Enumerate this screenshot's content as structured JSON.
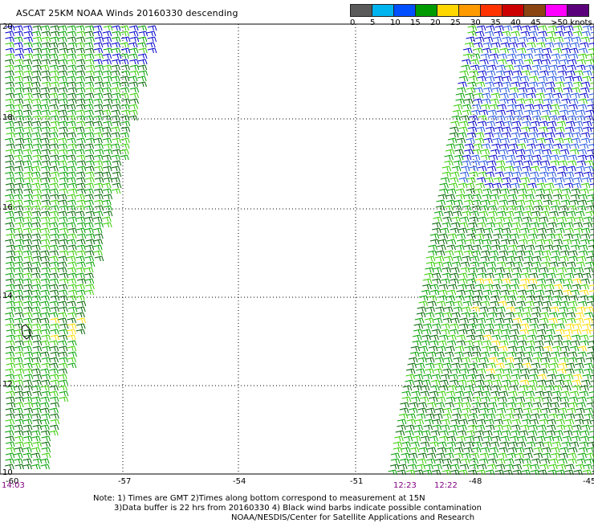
{
  "title": "ASCAT 25KM NOAA Winds 20160330 descending",
  "legend": {
    "labels": [
      "0",
      "5",
      "10",
      "15",
      "20",
      "25",
      "30",
      "35",
      "40",
      "45",
      ">50 knots"
    ],
    "colors": [
      "#5a5a5a",
      "#00b4f0",
      "#0050ff",
      "#009b00",
      "#ffd700",
      "#ff9900",
      "#ff3300",
      "#cc0000",
      "#8b4513",
      "#ff00ff",
      "#5a007a"
    ]
  },
  "axes": {
    "lon_labels": [
      "-60",
      "-57",
      "-54",
      "-51",
      "-48",
      "-45"
    ],
    "lat_labels": [
      "20",
      "18",
      "16",
      "14",
      "12",
      "10"
    ]
  },
  "pass_times": {
    "left_swath": "14:03",
    "right_swath_a": "12:23",
    "right_swath_b": "12:22"
  },
  "barb_colors": {
    "dark_green": "#006400",
    "green": "#00a000",
    "light_green": "#33cc00",
    "blue": "#0000cc",
    "mid_blue": "#2255dd",
    "yellow": "#ffdd00"
  },
  "notes": {
    "line1": "Note: 1) Times are GMT 2)Times along bottom correspond to measurement at 15N",
    "line2": "3)Data buffer is 22 hrs from 20160330 4) Black wind barbs indicate possible contamination",
    "line3": "NOAA/NESDIS/Center for Satellite Applications and Research"
  }
}
